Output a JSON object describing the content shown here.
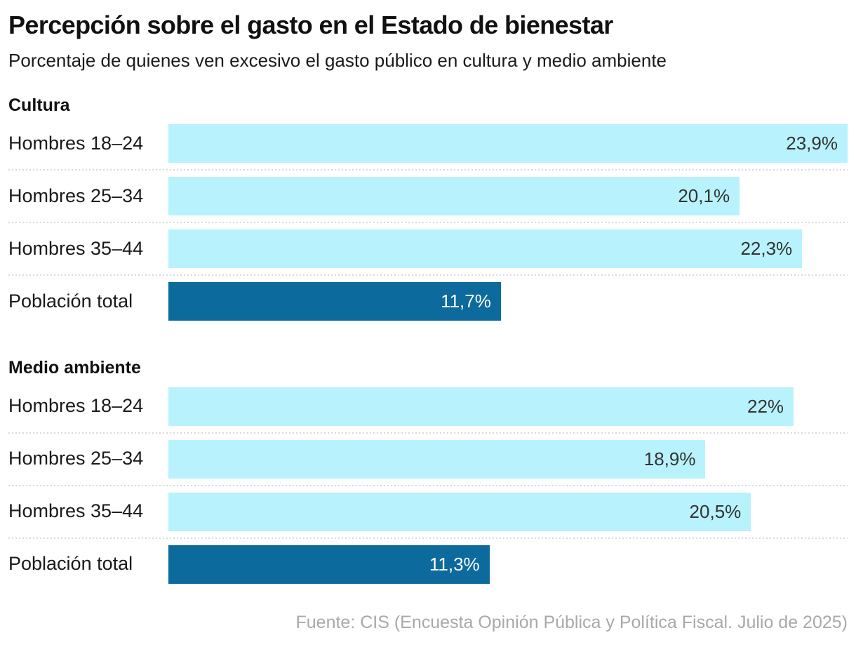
{
  "title": "Percepción sobre el gasto en el Estado de bienestar",
  "subtitle": "Porcentaje de quienes ven excesivo el gasto público en cultura y medio ambiente",
  "source": "Fuente: CIS (Encuesta Opinión Pública y Política Fiscal. Julio de 2025)",
  "colors": {
    "bar_light": "#b8f2fc",
    "bar_dark": "#0c6a9c",
    "value_text_on_light": "#333333",
    "value_text_on_dark": "#ffffff",
    "separator": "#d9d9d9",
    "source_text": "#a9a9a9"
  },
  "chart_data": {
    "type": "bar",
    "orientation": "horizontal",
    "unit": "%",
    "scale_max": 23.9,
    "grid": false,
    "legend": false,
    "groups": [
      {
        "heading": "Cultura",
        "rows": [
          {
            "label": "Hombres 18–24",
            "value": 23.9,
            "value_label": "23,9%",
            "emphasis": false
          },
          {
            "label": "Hombres 25–34",
            "value": 20.1,
            "value_label": "20,1%",
            "emphasis": false
          },
          {
            "label": "Hombres 35–44",
            "value": 22.3,
            "value_label": "22,3%",
            "emphasis": false
          },
          {
            "label": "Población total",
            "value": 11.7,
            "value_label": "11,7%",
            "emphasis": true
          }
        ]
      },
      {
        "heading": "Medio ambiente",
        "rows": [
          {
            "label": "Hombres 18–24",
            "value": 22.0,
            "value_label": "22%",
            "emphasis": false
          },
          {
            "label": "Hombres 25–34",
            "value": 18.9,
            "value_label": "18,9%",
            "emphasis": false
          },
          {
            "label": "Hombres 35–44",
            "value": 20.5,
            "value_label": "20,5%",
            "emphasis": false
          },
          {
            "label": "Población total",
            "value": 11.3,
            "value_label": "11,3%",
            "emphasis": true
          }
        ]
      }
    ]
  }
}
